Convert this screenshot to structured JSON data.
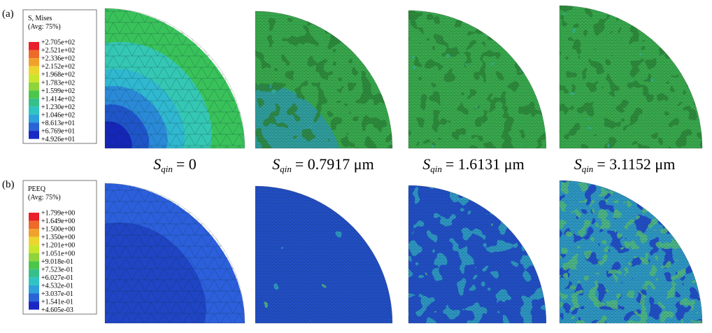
{
  "panels": [
    {
      "tag": "(a)",
      "legend": {
        "title": "S, Mises",
        "subtitle": "(Avg: 75%)",
        "values": [
          "+2.705e+02",
          "+2.521e+02",
          "+2.336e+02",
          "+2.152e+02",
          "+1.968e+02",
          "+1.783e+02",
          "+1.599e+02",
          "+1.414e+02",
          "+1.230e+02",
          "+1.046e+02",
          "+8.613e+01",
          "+6.769e+01",
          "+4.926e+01"
        ]
      }
    },
    {
      "tag": "(b)",
      "legend": {
        "title": "PEEQ",
        "subtitle": "(Avg: 75%)",
        "values": [
          "+1.799e+00",
          "+1.649e+00",
          "+1.500e+00",
          "+1.350e+00",
          "+1.201e+00",
          "+1.051e+00",
          "+9.018e-01",
          "+7.523e-01",
          "+6.027e-01",
          "+4.532e-01",
          "+3.037e-01",
          "+1.541e-01",
          "+4.605e-03"
        ]
      }
    }
  ],
  "samples": [
    {
      "symbol": "S",
      "subscript": "qin",
      "value": "= 0"
    },
    {
      "symbol": "S",
      "subscript": "qin",
      "value": "= 0.7917 μm"
    },
    {
      "symbol": "S",
      "subscript": "qin",
      "value": "= 1.6131 μm"
    },
    {
      "symbol": "S",
      "subscript": "qin",
      "value": "= 3.1152 μm"
    }
  ]
}
